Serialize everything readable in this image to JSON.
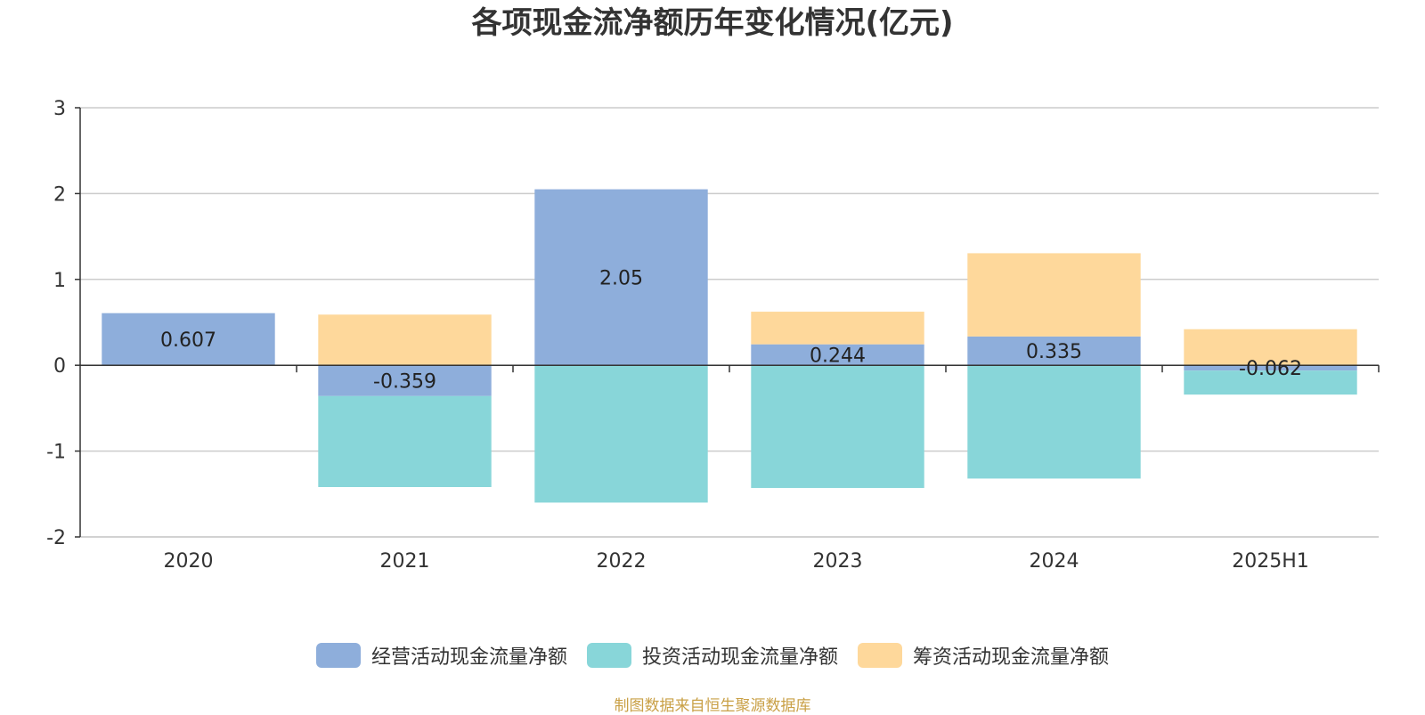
{
  "chart_data": {
    "type": "bar",
    "stacked": true,
    "title": "各项现金流净额历年变化情况(亿元)",
    "categories": [
      "2020",
      "2021",
      "2022",
      "2023",
      "2024",
      "2025H1"
    ],
    "series": [
      {
        "name": "经营活动现金流量净额",
        "color": "#8eaedb",
        "values": [
          0.607,
          -0.359,
          2.05,
          0.244,
          0.335,
          -0.062
        ],
        "labels": [
          "0.607",
          "-0.359",
          "2.05",
          "0.244",
          "0.335",
          "-0.062"
        ]
      },
      {
        "name": "投资活动现金流量净额",
        "color": "#88d6d9",
        "values": [
          0,
          -1.06,
          -1.6,
          -1.43,
          -1.32,
          -0.28
        ]
      },
      {
        "name": "筹资活动现金流量净额",
        "color": "#fed89b",
        "values": [
          0,
          0.59,
          0,
          0.38,
          0.97,
          0.42
        ]
      }
    ],
    "y_ticks": [
      "3",
      "2",
      "1",
      "0",
      "-1",
      "-2"
    ],
    "ylim": [
      -2,
      3
    ],
    "grid": true,
    "legend_position": "bottom"
  },
  "source_note": "制图数据来自恒生聚源数据库"
}
